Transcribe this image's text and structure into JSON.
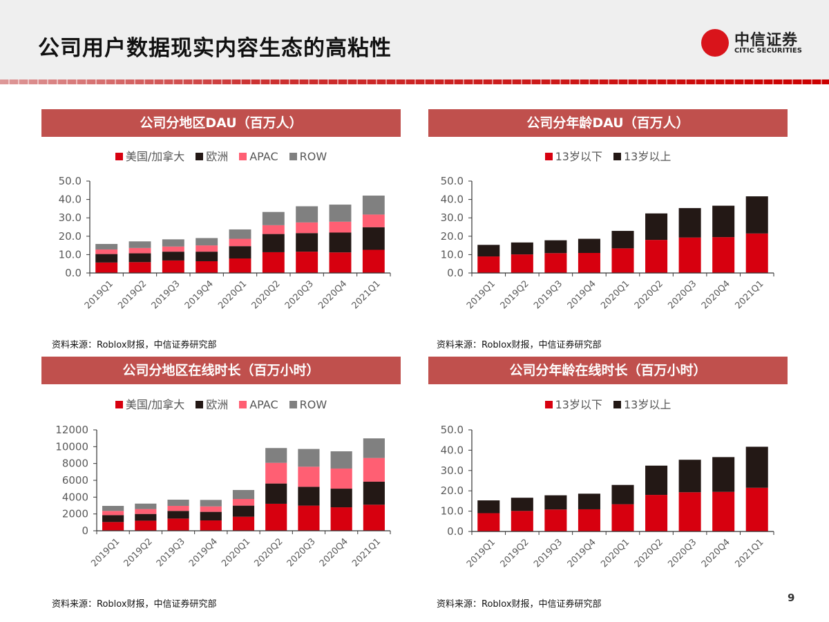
{
  "header": {
    "title": "公司用户数据现实内容生态的高粘性",
    "logo_cn": "中信证券",
    "logo_en": "CITIC SECURITIES"
  },
  "colors": {
    "us_canada": "#d7000f",
    "europe": "#231815",
    "apac": "#ff5f73",
    "row": "#808080",
    "under13": "#d7000f",
    "over13": "#231815",
    "title_bar": "#c0504d"
  },
  "source_text": "资料来源：Roblox财报，中信证券研究部",
  "page_number": "9",
  "chart_data": [
    {
      "type": "bar",
      "stacked": true,
      "title": "公司分地区DAU（百万人）",
      "categories": [
        "2019Q1",
        "2019Q2",
        "2019Q3",
        "2019Q4",
        "2020Q1",
        "2020Q2",
        "2020Q3",
        "2020Q4",
        "2021Q1"
      ],
      "series": [
        {
          "name": "美国/加拿大",
          "color": "#d7000f",
          "values": [
            5.7,
            5.9,
            6.8,
            6.4,
            7.9,
            11.3,
            11.6,
            11.2,
            12.6
          ]
        },
        {
          "name": "欧洲",
          "color": "#231815",
          "values": [
            4.6,
            4.8,
            4.8,
            5.2,
            6.7,
            9.9,
            10.1,
            10.8,
            12.3
          ]
        },
        {
          "name": "APAC",
          "color": "#ff5f73",
          "values": [
            2.5,
            2.9,
            2.8,
            3.4,
            4.0,
            4.8,
            5.8,
            5.9,
            6.9
          ]
        },
        {
          "name": "ROW",
          "color": "#808080",
          "values": [
            3.0,
            3.6,
            3.9,
            4.0,
            5.1,
            7.2,
            8.8,
            9.3,
            10.3
          ]
        }
      ],
      "ylim": [
        0,
        50
      ],
      "yticks": [
        "0.0",
        "10.0",
        "20.0",
        "30.0",
        "40.0",
        "50.0"
      ],
      "ytick_values": [
        0,
        10,
        20,
        30,
        40,
        50
      ],
      "grid": false,
      "legend": "top"
    },
    {
      "type": "bar",
      "stacked": true,
      "title": "公司分年龄DAU（百万人）",
      "categories": [
        "2019Q1",
        "2019Q2",
        "2019Q3",
        "2019Q4",
        "2020Q1",
        "2020Q2",
        "2020Q3",
        "2020Q4",
        "2021Q1"
      ],
      "series": [
        {
          "name": "13岁以下",
          "color": "#d7000f",
          "values": [
            9.0,
            10.1,
            10.8,
            10.9,
            13.4,
            18.0,
            19.3,
            19.5,
            21.5
          ]
        },
        {
          "name": "13岁以上",
          "color": "#231815",
          "values": [
            6.3,
            6.5,
            7.0,
            7.7,
            9.5,
            14.4,
            16.0,
            17.1,
            20.2
          ]
        }
      ],
      "ylim": [
        0,
        50
      ],
      "yticks": [
        "0.0",
        "10.0",
        "20.0",
        "30.0",
        "40.0",
        "50.0"
      ],
      "ytick_values": [
        0,
        10,
        20,
        30,
        40,
        50
      ],
      "grid": false,
      "legend": "top"
    },
    {
      "type": "bar",
      "stacked": true,
      "title": "公司分地区在线时长（百万小时）",
      "categories": [
        "2019Q1",
        "2019Q2",
        "2019Q3",
        "2019Q4",
        "2020Q1",
        "2020Q2",
        "2020Q3",
        "2020Q4",
        "2021Q1"
      ],
      "series": [
        {
          "name": "美国/加拿大",
          "color": "#d7000f",
          "values": [
            1040,
            1200,
            1450,
            1230,
            1670,
            3210,
            2990,
            2790,
            3100
          ]
        },
        {
          "name": "欧洲",
          "color": "#231815",
          "values": [
            820,
            800,
            910,
            1020,
            1320,
            2410,
            2240,
            2220,
            2740
          ]
        },
        {
          "name": "APAC",
          "color": "#ff5f73",
          "values": [
            500,
            580,
            600,
            650,
            790,
            2460,
            2390,
            2390,
            2820
          ]
        },
        {
          "name": "ROW",
          "color": "#808080",
          "values": [
            600,
            650,
            740,
            770,
            1070,
            1760,
            2110,
            2050,
            2330
          ]
        }
      ],
      "ylim": [
        0,
        12000
      ],
      "yticks": [
        "0",
        "2000",
        "4000",
        "6000",
        "8000",
        "10000",
        "12000"
      ],
      "ytick_values": [
        0,
        2000,
        4000,
        6000,
        8000,
        10000,
        12000
      ],
      "grid": false,
      "legend": "top"
    },
    {
      "type": "bar",
      "stacked": true,
      "title": "公司分年龄在线时长（百万小时）",
      "categories": [
        "2019Q1",
        "2019Q2",
        "2019Q3",
        "2019Q4",
        "2020Q1",
        "2020Q2",
        "2020Q3",
        "2020Q4",
        "2021Q1"
      ],
      "series": [
        {
          "name": "13岁以下",
          "color": "#d7000f",
          "values": [
            9.0,
            10.1,
            10.8,
            10.9,
            13.4,
            18.0,
            19.3,
            19.5,
            21.5
          ]
        },
        {
          "name": "13岁以上",
          "color": "#231815",
          "values": [
            6.3,
            6.5,
            7.0,
            7.7,
            9.5,
            14.4,
            16.0,
            17.1,
            20.2
          ]
        }
      ],
      "ylim": [
        0,
        50
      ],
      "yticks": [
        "0.0",
        "10.0",
        "20.0",
        "30.0",
        "40.0",
        "50.0"
      ],
      "ytick_values": [
        0,
        10,
        20,
        30,
        40,
        50
      ],
      "grid": false,
      "legend": "top"
    }
  ]
}
